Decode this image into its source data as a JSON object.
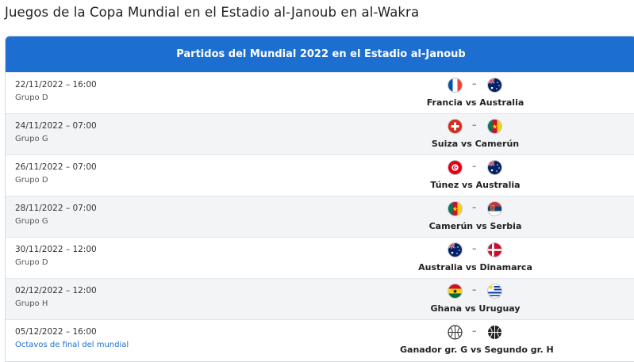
{
  "page_title": "Juegos de la Copa Mundial en el Estadio al-Janoub en al-Wakra",
  "table_title": "Partidos del Mundial 2022 en el Estadio al-Janoub",
  "separator": "–",
  "matches": [
    {
      "datetime": "22/11/2022 – 16:00",
      "group": "Grupo D",
      "teams": "Francia vs Australia",
      "home_icon": "france-flag-icon",
      "away_icon": "australia-flag-icon"
    },
    {
      "datetime": "24/11/2022 – 07:00",
      "group": "Grupo G",
      "teams": "Suiza vs Camerún",
      "home_icon": "switzerland-flag-icon",
      "away_icon": "cameroon-flag-icon"
    },
    {
      "datetime": "26/11/2022 – 07:00",
      "group": "Grupo D",
      "teams": "Túnez vs Australia",
      "home_icon": "tunisia-flag-icon",
      "away_icon": "australia-flag-icon"
    },
    {
      "datetime": "28/11/2022 – 07:00",
      "group": "Grupo G",
      "teams": "Camerún vs Serbia",
      "home_icon": "cameroon-flag-icon",
      "away_icon": "serbia-flag-icon"
    },
    {
      "datetime": "30/11/2022 – 12:00",
      "group": "Grupo D",
      "teams": "Australia vs Dinamarca",
      "home_icon": "australia-flag-icon",
      "away_icon": "denmark-flag-icon"
    },
    {
      "datetime": "02/12/2022 – 12:00",
      "group": "Grupo H",
      "teams": "Ghana vs Uruguay",
      "home_icon": "ghana-flag-icon",
      "away_icon": "uruguay-flag-icon"
    },
    {
      "datetime": "05/12/2022 – 16:00",
      "group": "Octavos de final del mundial",
      "teams": "Ganador gr. G vs Segundo gr. H",
      "home_icon": "football-icon",
      "away_icon": "football-icon"
    }
  ],
  "colors": {
    "header": "#1c6fd1",
    "link": "#1c6fd1"
  }
}
